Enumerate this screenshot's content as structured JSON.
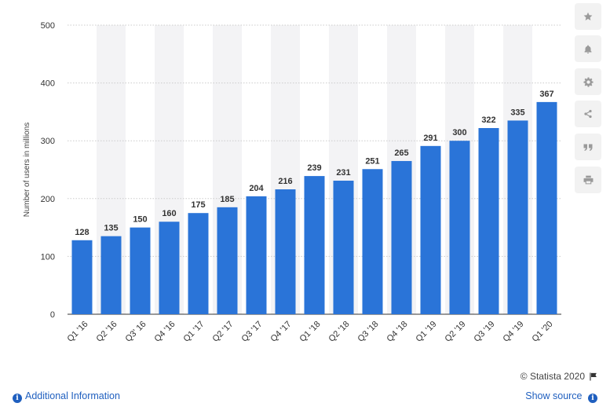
{
  "chart_data": {
    "type": "bar",
    "categories": [
      "Q1 '16",
      "Q2 '16",
      "Q3' 16",
      "Q4 '16",
      "Q1 '17",
      "Q2 '17",
      "Q3 '17",
      "Q4 '17",
      "Q1 '18",
      "Q2 '18",
      "Q3 '18",
      "Q4 '18",
      "Q1 '19",
      "Q2 '19",
      "Q3 '19",
      "Q4 '19",
      "Q1 '20"
    ],
    "values": [
      128,
      135,
      150,
      160,
      175,
      185,
      204,
      216,
      239,
      231,
      251,
      265,
      291,
      300,
      322,
      335,
      367
    ],
    "ylabel": "Number of users in millions",
    "ylim": [
      0,
      500
    ],
    "yticks": [
      0,
      100,
      200,
      300,
      400,
      500
    ],
    "grid": true,
    "bar_color": "#2a74d8",
    "alt_band_color": "#f3f3f5",
    "gridline_color": "#cccccc"
  },
  "toolbar": {
    "items": [
      {
        "icon": "star-icon"
      },
      {
        "icon": "bell-icon"
      },
      {
        "icon": "gear-icon"
      },
      {
        "icon": "share-icon"
      },
      {
        "icon": "quote-icon"
      },
      {
        "icon": "print-icon"
      }
    ]
  },
  "footer": {
    "credit": "© Statista 2020",
    "additional_info": "Additional Information",
    "show_source": "Show source"
  },
  "colors": {
    "link": "#1f5fbf",
    "icon": "#9a9a9a"
  }
}
